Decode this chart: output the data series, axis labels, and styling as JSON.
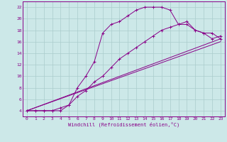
{
  "xlabel": "Windchill (Refroidissement éolien,°C)",
  "background_color": "#cce8e8",
  "grid_color": "#aacccc",
  "line_color": "#880088",
  "xlim": [
    -0.5,
    23.5
  ],
  "ylim": [
    3.0,
    23.0
  ],
  "xticks": [
    0,
    1,
    2,
    3,
    4,
    5,
    6,
    7,
    8,
    9,
    10,
    11,
    12,
    13,
    14,
    15,
    16,
    17,
    18,
    19,
    20,
    21,
    22,
    23
  ],
  "yticks": [
    4,
    6,
    8,
    10,
    12,
    14,
    16,
    18,
    20,
    22
  ],
  "line1_x": [
    0,
    1,
    2,
    3,
    4,
    5,
    6,
    7,
    8,
    9,
    10,
    11,
    12,
    13,
    14,
    15,
    16,
    17,
    18,
    19,
    20,
    21,
    22,
    23
  ],
  "line1_y": [
    4,
    4,
    4,
    4,
    4,
    5,
    8,
    10,
    12.5,
    17.5,
    19,
    19.5,
    20.5,
    21.5,
    22,
    22,
    22,
    21.5,
    19,
    19,
    18,
    17.5,
    16.5,
    17
  ],
  "line2_x": [
    0,
    23
  ],
  "line2_y": [
    4,
    16.5
  ],
  "line3_x": [
    0,
    23
  ],
  "line3_y": [
    4,
    16.0
  ],
  "line4_x": [
    0,
    1,
    2,
    3,
    4,
    5,
    6,
    7,
    8,
    9,
    10,
    11,
    12,
    13,
    14,
    15,
    16,
    17,
    18,
    19,
    20,
    21,
    22,
    23
  ],
  "line4_y": [
    4,
    4,
    4,
    4,
    4.5,
    5.0,
    6.5,
    7.5,
    9,
    10,
    11.5,
    13,
    14,
    15,
    16,
    17,
    18,
    18.5,
    19,
    19.5,
    18,
    17.5,
    17.5,
    16.5
  ]
}
